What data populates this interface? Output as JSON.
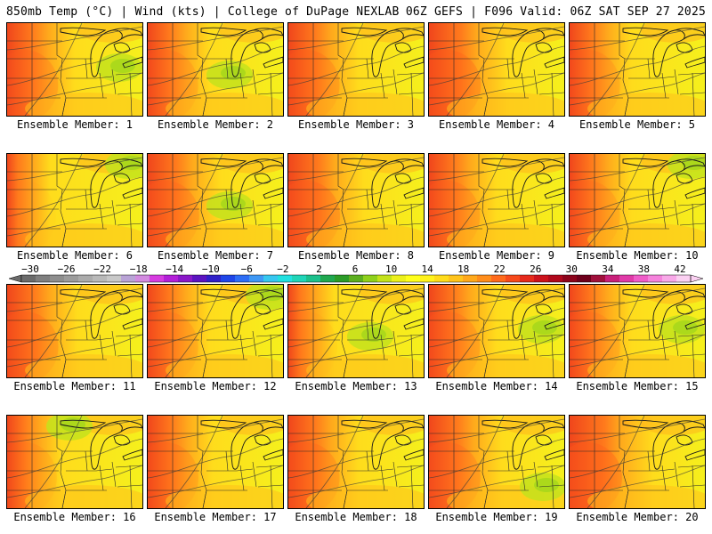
{
  "header": {
    "left_title": "850mb Temp (°C) | Wind (kts) | College of DuPage NEXLAB",
    "right_title": "06Z GEFS | F096 Valid: 06Z SAT SEP 27 2025"
  },
  "panels": [
    {
      "label": "Ensemble Member: 1",
      "member": 1,
      "warmth": 0.66,
      "cool_patch": "east"
    },
    {
      "label": "Ensemble Member: 2",
      "member": 2,
      "warmth": 0.62,
      "cool_patch": "center"
    },
    {
      "label": "Ensemble Member: 3",
      "member": 3,
      "warmth": 0.68,
      "cool_patch": "none"
    },
    {
      "label": "Ensemble Member: 4",
      "member": 4,
      "warmth": 0.74,
      "cool_patch": "none"
    },
    {
      "label": "Ensemble Member: 5",
      "member": 5,
      "warmth": 0.62,
      "cool_patch": "none"
    },
    {
      "label": "Ensemble Member: 6",
      "member": 6,
      "warmth": 0.48,
      "cool_patch": "northeast"
    },
    {
      "label": "Ensemble Member: 7",
      "member": 7,
      "warmth": 0.7,
      "cool_patch": "center"
    },
    {
      "label": "Ensemble Member: 8",
      "member": 8,
      "warmth": 0.72,
      "cool_patch": "none"
    },
    {
      "label": "Ensemble Member: 9",
      "member": 9,
      "warmth": 0.66,
      "cool_patch": "none"
    },
    {
      "label": "Ensemble Member: 10",
      "member": 10,
      "warmth": 0.62,
      "cool_patch": "northeast"
    },
    {
      "label": "Ensemble Member: 11",
      "member": 11,
      "warmth": 0.68,
      "cool_patch": "none"
    },
    {
      "label": "Ensemble Member: 12",
      "member": 12,
      "warmth": 0.62,
      "cool_patch": "northeast"
    },
    {
      "label": "Ensemble Member: 13",
      "member": 13,
      "warmth": 0.5,
      "cool_patch": "center"
    },
    {
      "label": "Ensemble Member: 14",
      "member": 14,
      "warmth": 0.66,
      "cool_patch": "east"
    },
    {
      "label": "Ensemble Member: 15",
      "member": 15,
      "warmth": 0.62,
      "cool_patch": "east"
    },
    {
      "label": "Ensemble Member: 16",
      "member": 16,
      "warmth": 0.56,
      "cool_patch": "north"
    },
    {
      "label": "Ensemble Member: 17",
      "member": 17,
      "warmth": 0.64,
      "cool_patch": "none"
    },
    {
      "label": "Ensemble Member: 18",
      "member": 18,
      "warmth": 0.68,
      "cool_patch": "none"
    },
    {
      "label": "Ensemble Member: 19",
      "member": 19,
      "warmth": 0.7,
      "cool_patch": "southeast"
    },
    {
      "label": "Ensemble Member: 20",
      "member": 20,
      "warmth": 0.78,
      "cool_patch": "none"
    }
  ],
  "colorbar": {
    "tick_labels": [
      "−30",
      "−26",
      "−22",
      "−18",
      "−14",
      "−10",
      "−6",
      "−2",
      "2",
      "6",
      "10",
      "14",
      "18",
      "22",
      "26",
      "30",
      "34",
      "38",
      "42"
    ],
    "colors": [
      "#6b6b6b",
      "#7f7f7f",
      "#8e8e8e",
      "#9c9c9c",
      "#ababab",
      "#b9b9b9",
      "#c8c8c8",
      "#b9a3d6",
      "#d28be0",
      "#d63ce0",
      "#b320d8",
      "#8a18c8",
      "#5b14c0",
      "#3020c8",
      "#1f46e8",
      "#2d6df5",
      "#3f98f5",
      "#37c7f0",
      "#22e0e0",
      "#20d5b8",
      "#1cc08c",
      "#20a850",
      "#2c9c28",
      "#5caf1f",
      "#8fd11c",
      "#c4e21c",
      "#ecf01c",
      "#ffff1c",
      "#fff21c",
      "#ffdc1c",
      "#ffc41c",
      "#ffa91c",
      "#ff8d1c",
      "#ff6a1c",
      "#f74a1c",
      "#e62a1c",
      "#cc121c",
      "#b0081c",
      "#8c041c",
      "#6e001c",
      "#a0103c",
      "#c8207a",
      "#e03aa8",
      "#ef5cc8",
      "#f582dc",
      "#f8a8e8",
      "#fbd0f2"
    ]
  }
}
